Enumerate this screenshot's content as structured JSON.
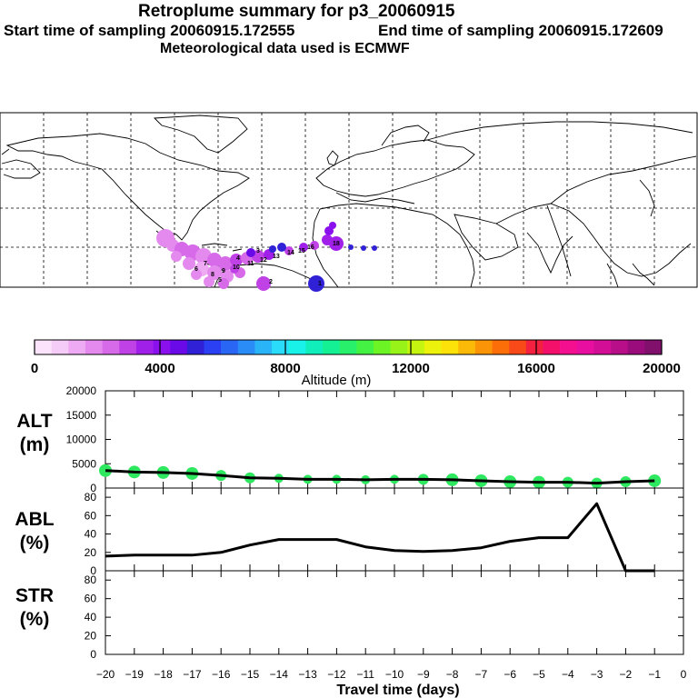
{
  "header": {
    "title": "Retroplume summary for p3_20060915",
    "start_sampling": "Start time of sampling 20060915.172555",
    "end_sampling": "End time of sampling 20060915.172609",
    "met_data": "Meteorological data used is ECMWF"
  },
  "colorbar": {
    "label": "Altitude (m)",
    "tick_labels": [
      "0",
      "4000",
      "8000",
      "12000",
      "16000",
      "20000"
    ],
    "colors": [
      "#fbe4fb",
      "#f5ccf7",
      "#eeaaf3",
      "#e48aee",
      "#d66ae8",
      "#c042e6",
      "#a020ea",
      "#8a10ee",
      "#6a0ae8",
      "#3020d6",
      "#2a40f2",
      "#2a66f4",
      "#2a8cf6",
      "#2ab4f8",
      "#2adcfa",
      "#18f2e8",
      "#10eebc",
      "#14f094",
      "#28f06a",
      "#44f244",
      "#6cf424",
      "#98f418",
      "#c4f410",
      "#ecf20c",
      "#fce208",
      "#fcba08",
      "#fc9408",
      "#fc6e08",
      "#f84a18",
      "#f42040",
      "#f2106a",
      "#f40e90",
      "#e80ea0",
      "#d20e96",
      "#b80e8a",
      "#9a0c7c",
      "#80106c"
    ]
  },
  "map": {
    "trajectory_labels": [
      "18",
      "16",
      "15",
      "14",
      "13",
      "12",
      "11",
      "10",
      "9",
      "8",
      "7",
      "6",
      "5",
      "4",
      "3",
      "2",
      "1"
    ]
  },
  "axes": {
    "x_label": "Travel time (days)",
    "x_ticks": [
      "−20",
      "−19",
      "−18",
      "−17",
      "−16",
      "−15",
      "−14",
      "−13",
      "−12",
      "−11",
      "−10",
      "−9",
      "−8",
      "−7",
      "−6",
      "−5",
      "−4",
      "−3",
      "−2",
      "−1",
      "0"
    ],
    "alt_label_1": "ALT",
    "alt_label_2": "(m)",
    "alt_ticks": [
      "0",
      "5000",
      "10000",
      "15000",
      "20000"
    ],
    "abl_label_1": "ABL",
    "abl_label_2": "(%)",
    "abl_ticks": [
      "0",
      "20",
      "40",
      "60",
      "80"
    ],
    "str_label_1": "STR",
    "str_label_2": "(%)",
    "str_ticks": [
      "0",
      "20",
      "40",
      "60",
      "80"
    ]
  },
  "chart_data": [
    {
      "type": "line",
      "name": "ALT",
      "xlabel": "Travel time (days)",
      "ylabel": "ALT (m)",
      "xlim": [
        -20,
        0
      ],
      "ylim": [
        0,
        20000
      ],
      "x": [
        -20,
        -19,
        -18,
        -17,
        -16,
        -15,
        -14,
        -13,
        -12,
        -11,
        -10,
        -9,
        -8,
        -7,
        -6,
        -5,
        -4,
        -3,
        -2,
        -1
      ],
      "values": [
        3600,
        3300,
        3200,
        3000,
        2600,
        2100,
        2000,
        1800,
        1800,
        1700,
        1800,
        1800,
        1700,
        1500,
        1300,
        1200,
        1200,
        1000,
        1300,
        1500
      ],
      "marker_color": "#2ee860"
    },
    {
      "type": "line",
      "name": "ABL",
      "xlabel": "Travel time (days)",
      "ylabel": "ABL (%)",
      "xlim": [
        -20,
        0
      ],
      "ylim": [
        0,
        90
      ],
      "x": [
        -20,
        -19,
        -18,
        -17,
        -16,
        -15,
        -14,
        -13,
        -12,
        -11,
        -10,
        -9,
        -8,
        -7,
        -6,
        -5,
        -4,
        -3,
        -2,
        -1
      ],
      "values": [
        16,
        17,
        17,
        17,
        20,
        28,
        34,
        34,
        34,
        26,
        22,
        21,
        22,
        25,
        32,
        36,
        36,
        73,
        0,
        0
      ]
    },
    {
      "type": "line",
      "name": "STR",
      "xlabel": "Travel time (days)",
      "ylabel": "STR (%)",
      "xlim": [
        -20,
        0
      ],
      "ylim": [
        0,
        90
      ],
      "x": [],
      "values": []
    }
  ]
}
